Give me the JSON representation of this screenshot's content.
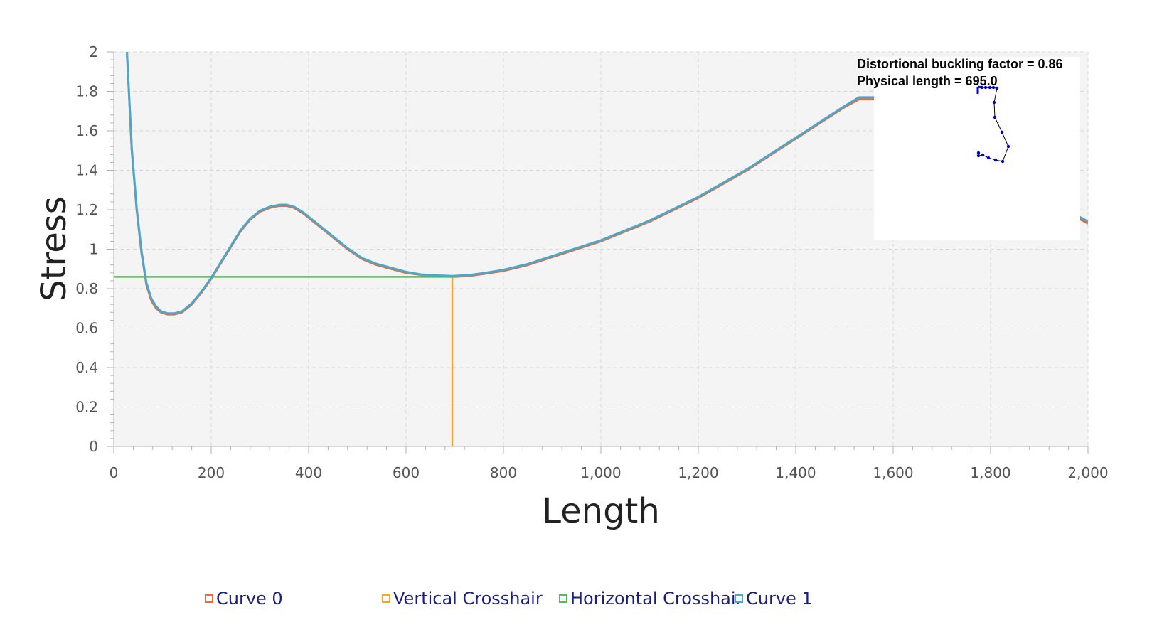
{
  "chart_data": {
    "type": "line",
    "xlabel": "Length",
    "ylabel": "Stress",
    "xlim": [
      0,
      2000
    ],
    "ylim": [
      0,
      2
    ],
    "x_ticks": [
      "0",
      "200",
      "400",
      "600",
      "800",
      "1,000",
      "1,200",
      "1,400",
      "1,600",
      "1,800",
      "2,000"
    ],
    "x_tick_values": [
      0,
      200,
      400,
      600,
      800,
      1000,
      1200,
      1400,
      1600,
      1800,
      2000
    ],
    "y_ticks": [
      "0",
      "0.2",
      "0.4",
      "0.6",
      "0.8",
      "1",
      "1.2",
      "1.4",
      "1.6",
      "1.8",
      "2"
    ],
    "y_tick_values": [
      0,
      0.2,
      0.4,
      0.6,
      0.8,
      1,
      1.2,
      1.4,
      1.6,
      1.8,
      2
    ],
    "grid": true,
    "legend_position": "bottom",
    "series": [
      {
        "name": "Curve 0",
        "color": "#e66a3a",
        "x": [
          27,
          37,
          47,
          57,
          67,
          77,
          87,
          97,
          110,
          125,
          140,
          160,
          180,
          200,
          220,
          240,
          260,
          280,
          300,
          320,
          340,
          355,
          370,
          390,
          410,
          430,
          450,
          480,
          510,
          540,
          570,
          600,
          630,
          660,
          695,
          730,
          760,
          800,
          850,
          900,
          950,
          1000,
          1050,
          1100,
          1150,
          1200,
          1250,
          1300,
          1350,
          1400,
          1450,
          1500,
          1530,
          1560,
          1600,
          1650,
          1700,
          1750,
          1800,
          1850,
          1900,
          1950,
          2000
        ],
        "y": [
          2.0,
          1.5,
          1.2,
          0.98,
          0.82,
          0.74,
          0.7,
          0.68,
          0.67,
          0.67,
          0.68,
          0.72,
          0.78,
          0.85,
          0.93,
          1.01,
          1.09,
          1.15,
          1.19,
          1.21,
          1.22,
          1.22,
          1.21,
          1.18,
          1.14,
          1.1,
          1.06,
          1.0,
          0.95,
          0.92,
          0.9,
          0.88,
          0.87,
          0.865,
          0.86,
          0.865,
          0.875,
          0.89,
          0.92,
          0.96,
          1.0,
          1.04,
          1.09,
          1.14,
          1.2,
          1.26,
          1.33,
          1.4,
          1.48,
          1.56,
          1.64,
          1.72,
          1.76,
          1.76,
          1.74,
          1.68,
          1.6,
          1.52,
          1.44,
          1.36,
          1.28,
          1.2,
          1.13
        ]
      },
      {
        "name": "Vertical Crosshair",
        "color": "#f5a623",
        "x": [
          695,
          695
        ],
        "y": [
          0,
          0.86
        ]
      },
      {
        "name": "Horizontal Crosshair",
        "color": "#5cb85c",
        "x": [
          0,
          695
        ],
        "y": [
          0.86,
          0.86
        ]
      },
      {
        "name": "Curve 1",
        "color": "#4aa8cc",
        "x": [
          27,
          37,
          47,
          57,
          67,
          77,
          87,
          97,
          110,
          125,
          140,
          160,
          180,
          200,
          220,
          240,
          260,
          280,
          300,
          320,
          340,
          355,
          370,
          390,
          410,
          430,
          450,
          480,
          510,
          540,
          570,
          600,
          630,
          660,
          695,
          730,
          760,
          800,
          850,
          900,
          950,
          1000,
          1050,
          1100,
          1150,
          1200,
          1250,
          1300,
          1350,
          1400,
          1450,
          1500,
          1530,
          1560,
          1600,
          1650,
          1700,
          1750,
          1800,
          1850,
          1900,
          1950,
          2000
        ],
        "y": [
          2.0,
          1.51,
          1.21,
          0.99,
          0.83,
          0.75,
          0.71,
          0.685,
          0.675,
          0.675,
          0.685,
          0.725,
          0.785,
          0.855,
          0.935,
          1.015,
          1.095,
          1.155,
          1.195,
          1.215,
          1.225,
          1.225,
          1.215,
          1.185,
          1.145,
          1.105,
          1.065,
          1.005,
          0.955,
          0.925,
          0.905,
          0.885,
          0.872,
          0.867,
          0.864,
          0.869,
          0.879,
          0.895,
          0.925,
          0.965,
          1.005,
          1.045,
          1.095,
          1.145,
          1.205,
          1.265,
          1.335,
          1.405,
          1.485,
          1.565,
          1.645,
          1.725,
          1.77,
          1.77,
          1.75,
          1.69,
          1.61,
          1.53,
          1.45,
          1.37,
          1.29,
          1.21,
          1.14
        ]
      }
    ],
    "annotation": {
      "line1": "Distortional buckling factor = 0.86",
      "line2": "Physical length = 695.0"
    }
  },
  "legend": [
    {
      "label": "Curve 0",
      "color": "#e66a3a"
    },
    {
      "label": "Vertical Crosshair",
      "color": "#f5a623"
    },
    {
      "label": "Horizontal Crosshair",
      "color": "#5cb85c"
    },
    {
      "label": "Curve 1",
      "color": "#4aa8cc"
    }
  ]
}
